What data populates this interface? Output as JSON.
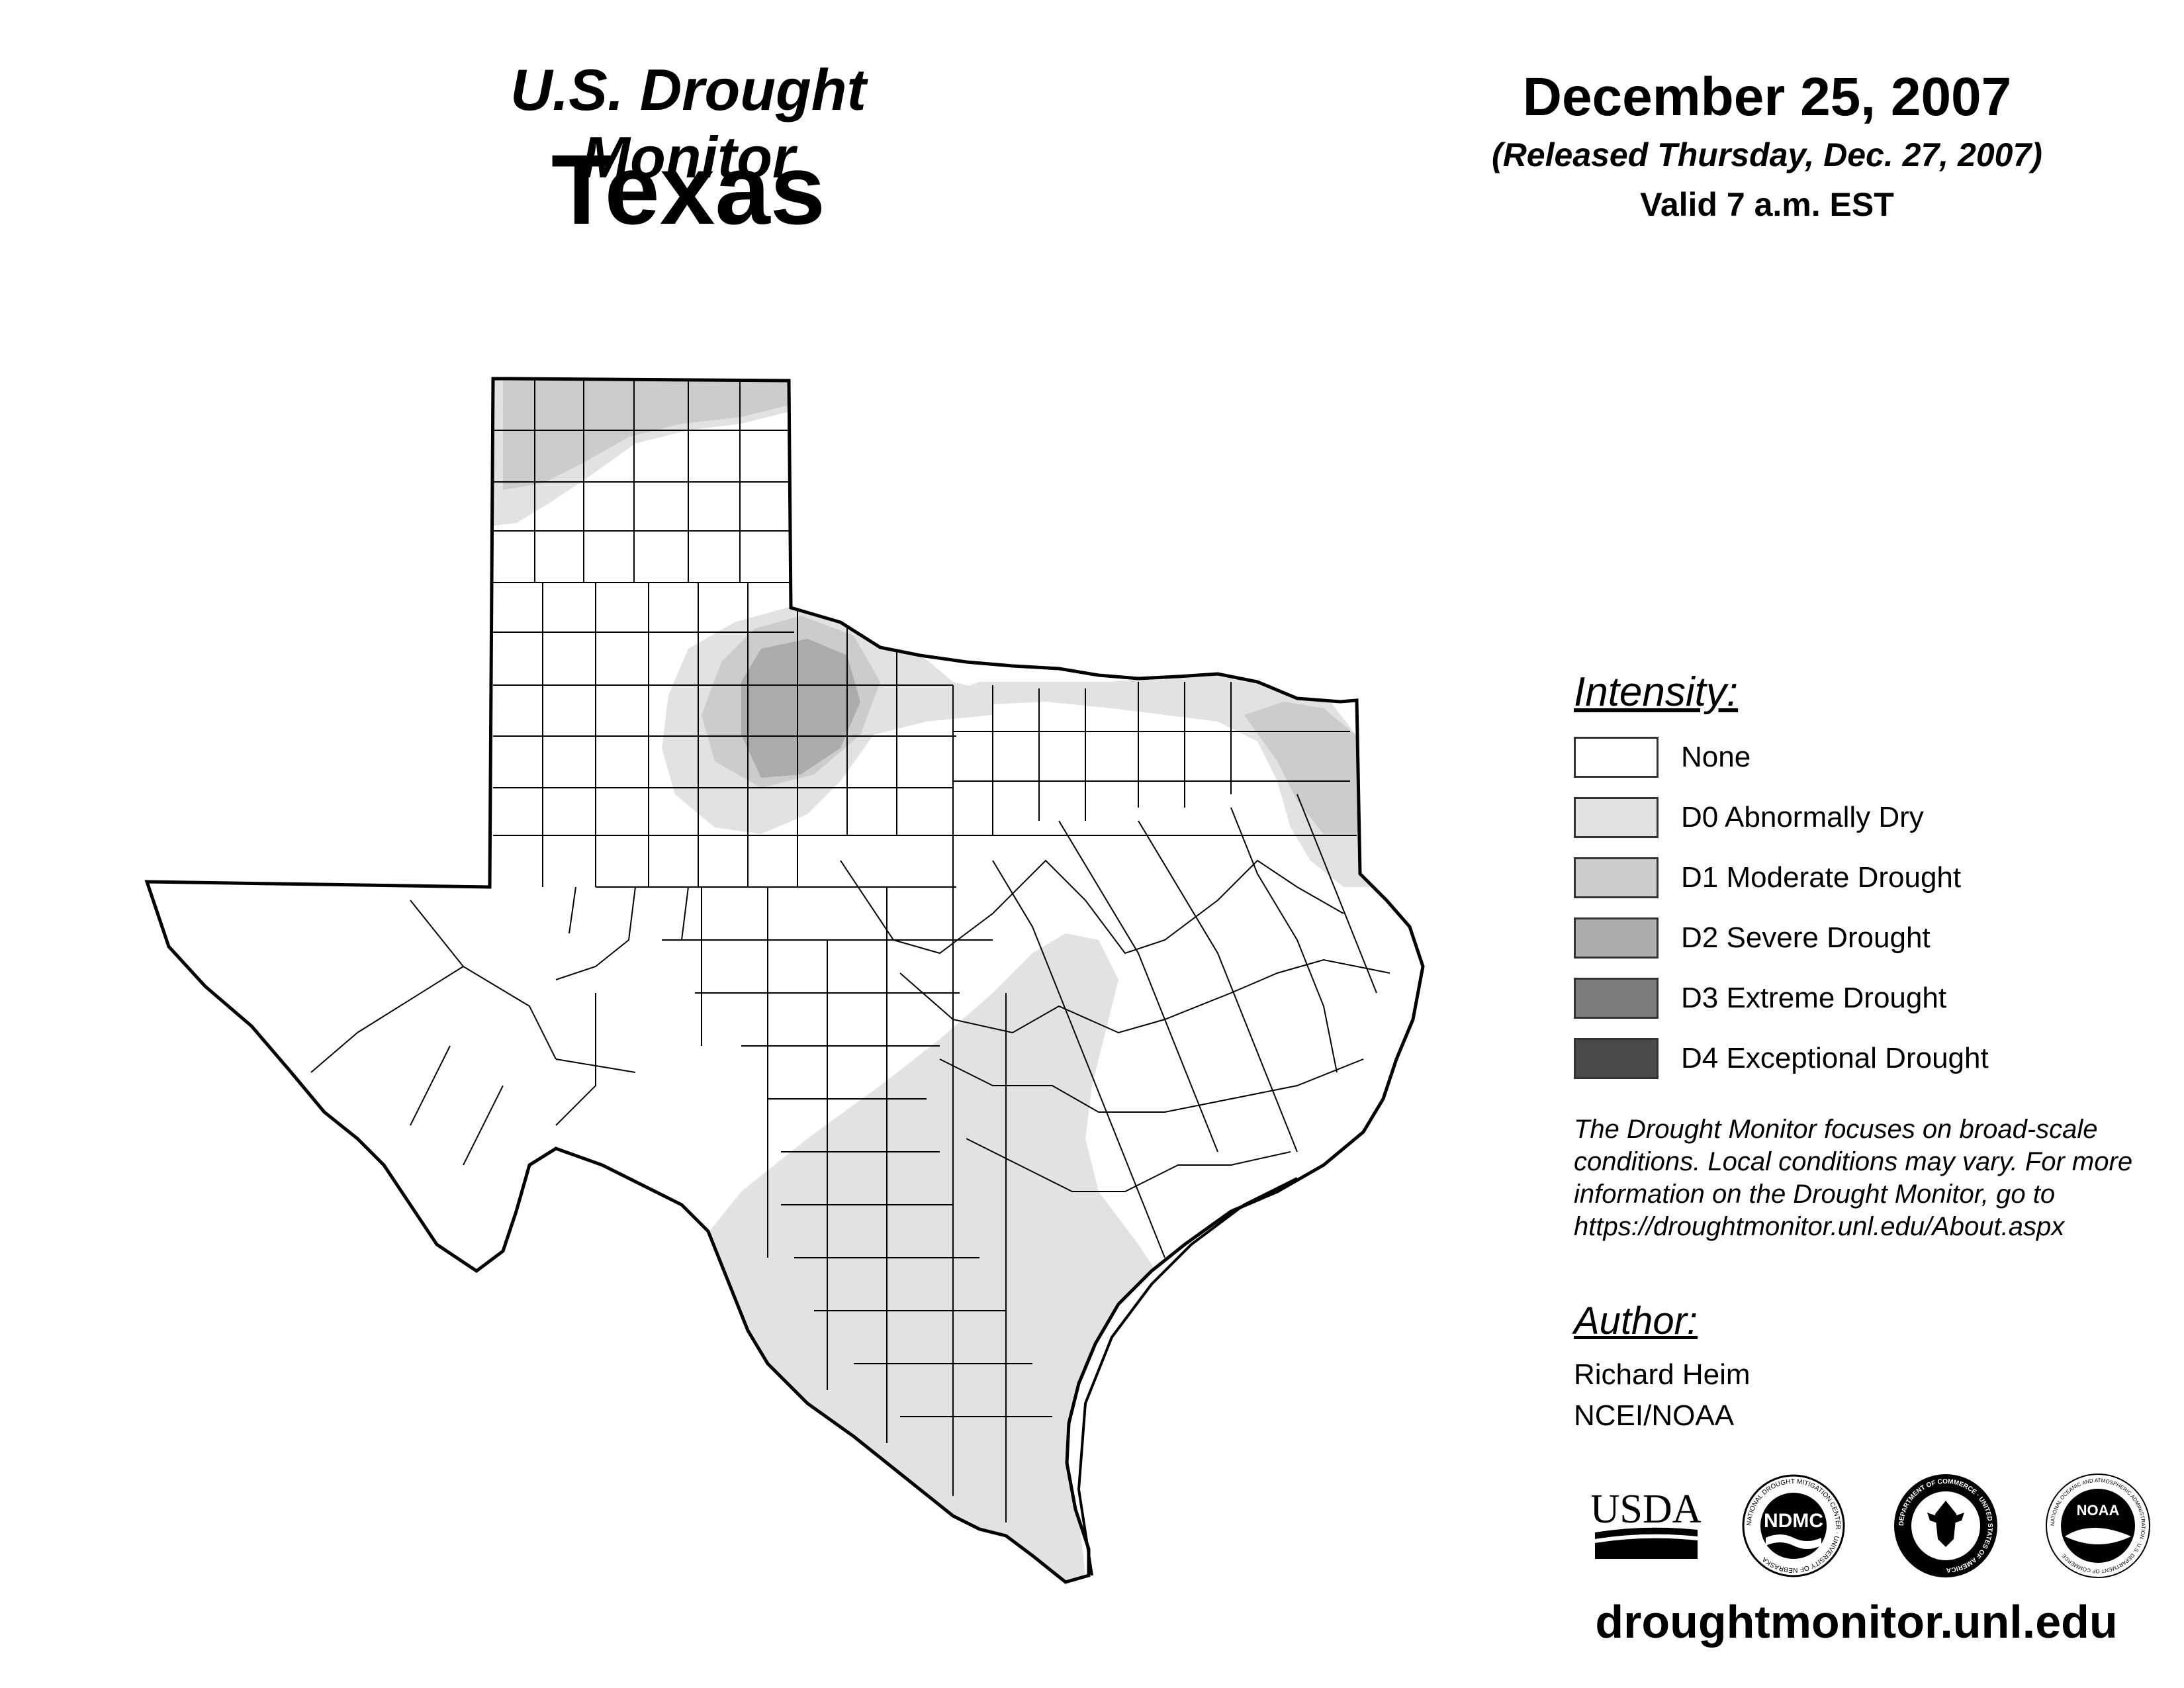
{
  "header": {
    "title": "U.S. Drought Monitor",
    "state": "Texas",
    "date": "December 25, 2007",
    "released": "(Released Thursday, Dec. 27, 2007)",
    "valid": "Valid 7 a.m. EST"
  },
  "map": {
    "region": "Texas",
    "boundaries": "county"
  },
  "legend": {
    "heading": "Intensity:",
    "items": [
      {
        "label": "None",
        "color": "#ffffff"
      },
      {
        "label": "D0 Abnormally Dry",
        "color": "#e2e2e2"
      },
      {
        "label": "D1 Moderate Drought",
        "color": "#cccccc"
      },
      {
        "label": "D2 Severe Drought",
        "color": "#acacac"
      },
      {
        "label": "D3 Extreme Drought",
        "color": "#7c7c7c"
      },
      {
        "label": "D4 Exceptional Drought",
        "color": "#4a4a4a"
      }
    ]
  },
  "note": {
    "lines": [
      "The Drought Monitor focuses on broad-scale",
      "conditions. Local conditions may vary. For more",
      "information on the Drought Monitor, go to",
      "https://droughtmonitor.unl.edu/About.aspx"
    ]
  },
  "author": {
    "heading": "Author:",
    "name": "Richard Heim",
    "org": "NCEI/NOAA"
  },
  "logos": {
    "usda": "USDA",
    "ndmc": "NDMC",
    "ndmc_ring": "NATIONAL DROUGHT MITIGATION CENTER · UNIVERSITY OF NEBRASKA",
    "commerce_ring": "DEPARTMENT OF COMMERCE · UNITED STATES OF AMERICA",
    "noaa": "NOAA",
    "noaa_ring": "NATIONAL OCEANIC AND ATMOSPHERIC ADMINISTRATION · U.S. DEPARTMENT OF COMMERCE"
  },
  "website": "droughtmonitor.unl.edu"
}
